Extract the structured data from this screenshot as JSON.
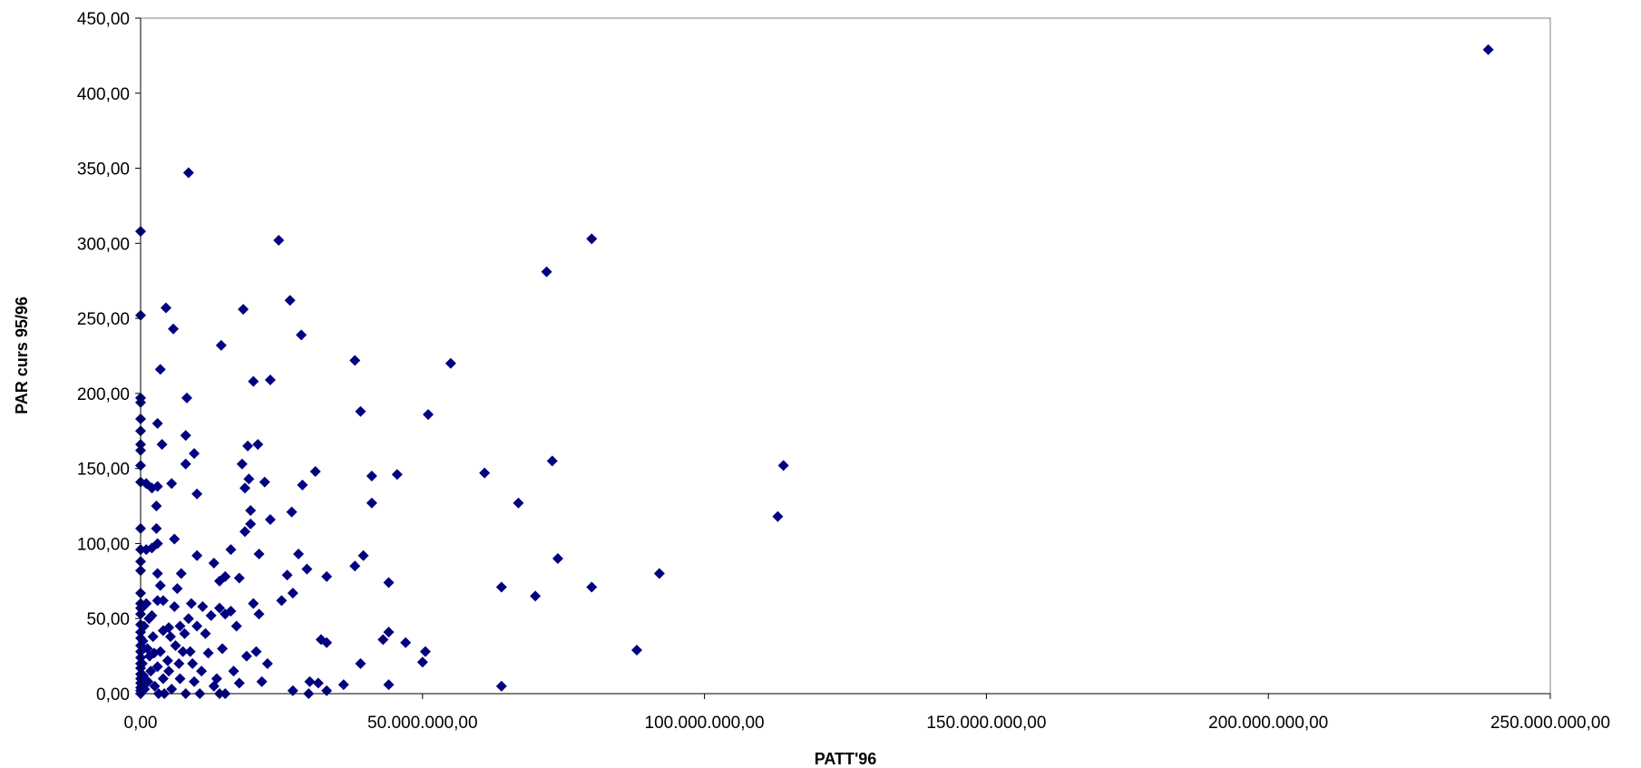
{
  "chart_data": {
    "type": "scatter",
    "title": "",
    "xlabel": "PATT'96",
    "ylabel": "PAR curs 95/96",
    "xlim": [
      0,
      250000000
    ],
    "ylim": [
      0,
      450
    ],
    "grid": false,
    "marker": "diamond",
    "marker_color": "#000080",
    "x_ticks": [
      {
        "value": 0,
        "label": "0,00"
      },
      {
        "value": 50000000,
        "label": "50.000.000,00"
      },
      {
        "value": 100000000,
        "label": "100.000.000,00"
      },
      {
        "value": 150000000,
        "label": "150.000.000,00"
      },
      {
        "value": 200000000,
        "label": "200.000.000,00"
      },
      {
        "value": 250000000,
        "label": "250.000.000,00"
      }
    ],
    "y_ticks": [
      {
        "value": 0,
        "label": "0,00"
      },
      {
        "value": 50,
        "label": "50,00"
      },
      {
        "value": 100,
        "label": "100,00"
      },
      {
        "value": 150,
        "label": "150,00"
      },
      {
        "value": 200,
        "label": "200,00"
      },
      {
        "value": 250,
        "label": "250,00"
      },
      {
        "value": 300,
        "label": "300,00"
      },
      {
        "value": 350,
        "label": "350,00"
      },
      {
        "value": 400,
        "label": "400,00"
      },
      {
        "value": 450,
        "label": "450,00"
      }
    ],
    "points": [
      [
        0,
        308
      ],
      [
        0,
        252
      ],
      [
        0,
        197
      ],
      [
        0,
        194
      ],
      [
        0,
        183
      ],
      [
        0,
        175
      ],
      [
        0,
        166
      ],
      [
        0,
        162
      ],
      [
        0,
        152
      ],
      [
        0,
        141
      ],
      [
        0,
        110
      ],
      [
        0,
        96
      ],
      [
        0,
        88
      ],
      [
        0,
        82
      ],
      [
        0,
        67
      ],
      [
        0,
        60
      ],
      [
        0,
        57
      ],
      [
        0,
        53
      ],
      [
        0,
        46
      ],
      [
        0,
        41
      ],
      [
        0,
        37
      ],
      [
        0,
        32
      ],
      [
        0,
        28
      ],
      [
        0,
        24
      ],
      [
        0,
        20
      ],
      [
        0,
        17
      ],
      [
        0,
        13
      ],
      [
        0,
        10
      ],
      [
        0,
        7
      ],
      [
        0,
        4
      ],
      [
        0,
        2
      ],
      [
        0,
        0
      ],
      [
        200000,
        57
      ],
      [
        300000,
        20
      ],
      [
        400000,
        35
      ],
      [
        500000,
        12
      ],
      [
        600000,
        45
      ],
      [
        700000,
        3
      ],
      [
        1000000,
        140
      ],
      [
        1000000,
        96
      ],
      [
        1000000,
        60
      ],
      [
        1200000,
        30
      ],
      [
        1300000,
        8
      ],
      [
        1500000,
        50
      ],
      [
        1600000,
        25
      ],
      [
        1800000,
        15
      ],
      [
        2000000,
        137
      ],
      [
        2000000,
        97
      ],
      [
        2000000,
        52
      ],
      [
        2200000,
        38
      ],
      [
        2400000,
        27
      ],
      [
        2500000,
        5
      ],
      [
        2800000,
        125
      ],
      [
        2800000,
        110
      ],
      [
        3000000,
        180
      ],
      [
        3000000,
        138
      ],
      [
        3000000,
        100
      ],
      [
        3000000,
        80
      ],
      [
        3000000,
        62
      ],
      [
        3000000,
        18
      ],
      [
        3200000,
        0
      ],
      [
        3500000,
        216
      ],
      [
        3500000,
        72
      ],
      [
        3500000,
        28
      ],
      [
        3800000,
        166
      ],
      [
        4000000,
        62
      ],
      [
        4000000,
        42
      ],
      [
        4000000,
        10
      ],
      [
        4200000,
        0
      ],
      [
        4500000,
        257
      ],
      [
        4800000,
        22
      ],
      [
        5000000,
        44
      ],
      [
        5000000,
        15
      ],
      [
        5300000,
        38
      ],
      [
        5500000,
        140
      ],
      [
        5500000,
        3
      ],
      [
        5800000,
        243
      ],
      [
        6000000,
        103
      ],
      [
        6000000,
        58
      ],
      [
        6200000,
        32
      ],
      [
        6500000,
        70
      ],
      [
        6800000,
        20
      ],
      [
        7000000,
        45
      ],
      [
        7000000,
        10
      ],
      [
        7200000,
        80
      ],
      [
        7500000,
        28
      ],
      [
        7800000,
        40
      ],
      [
        8000000,
        172
      ],
      [
        8000000,
        153
      ],
      [
        8000000,
        0
      ],
      [
        8200000,
        197
      ],
      [
        8500000,
        347
      ],
      [
        8500000,
        50
      ],
      [
        8800000,
        28
      ],
      [
        9000000,
        60
      ],
      [
        9200000,
        20
      ],
      [
        9500000,
        160
      ],
      [
        9500000,
        8
      ],
      [
        10000000,
        133
      ],
      [
        10000000,
        92
      ],
      [
        10000000,
        45
      ],
      [
        10500000,
        0
      ],
      [
        10800000,
        15
      ],
      [
        11000000,
        58
      ],
      [
        11500000,
        40
      ],
      [
        12000000,
        27
      ],
      [
        12500000,
        52
      ],
      [
        13000000,
        87
      ],
      [
        13000000,
        5
      ],
      [
        13500000,
        10
      ],
      [
        14000000,
        75
      ],
      [
        14000000,
        57
      ],
      [
        14000000,
        0
      ],
      [
        14300000,
        232
      ],
      [
        14500000,
        30
      ],
      [
        15000000,
        78
      ],
      [
        15000000,
        53
      ],
      [
        15000000,
        0
      ],
      [
        16000000,
        96
      ],
      [
        16000000,
        55
      ],
      [
        16500000,
        15
      ],
      [
        17000000,
        45
      ],
      [
        17500000,
        77
      ],
      [
        17500000,
        7
      ],
      [
        18000000,
        153
      ],
      [
        18200000,
        256
      ],
      [
        18500000,
        137
      ],
      [
        18500000,
        108
      ],
      [
        18800000,
        25
      ],
      [
        19000000,
        165
      ],
      [
        19200000,
        143
      ],
      [
        19500000,
        122
      ],
      [
        19500000,
        113
      ],
      [
        20000000,
        208
      ],
      [
        20000000,
        60
      ],
      [
        20500000,
        28
      ],
      [
        20800000,
        166
      ],
      [
        21000000,
        93
      ],
      [
        21000000,
        53
      ],
      [
        21500000,
        8
      ],
      [
        22000000,
        141
      ],
      [
        22500000,
        20
      ],
      [
        23000000,
        209
      ],
      [
        23000000,
        116
      ],
      [
        24500000,
        302
      ],
      [
        25000000,
        62
      ],
      [
        26000000,
        79
      ],
      [
        26500000,
        262
      ],
      [
        26800000,
        121
      ],
      [
        27000000,
        67
      ],
      [
        27000000,
        2
      ],
      [
        28000000,
        93
      ],
      [
        28500000,
        239
      ],
      [
        28700000,
        139
      ],
      [
        29500000,
        83
      ],
      [
        29800000,
        0
      ],
      [
        30000000,
        8
      ],
      [
        31000000,
        148
      ],
      [
        31500000,
        7
      ],
      [
        32000000,
        36
      ],
      [
        33000000,
        78
      ],
      [
        33000000,
        34
      ],
      [
        33000000,
        2
      ],
      [
        36000000,
        6
      ],
      [
        38000000,
        222
      ],
      [
        38000000,
        85
      ],
      [
        39000000,
        20
      ],
      [
        39000000,
        188
      ],
      [
        39500000,
        92
      ],
      [
        41000000,
        145
      ],
      [
        41000000,
        127
      ],
      [
        43000000,
        36
      ],
      [
        44000000,
        41
      ],
      [
        44000000,
        74
      ],
      [
        44000000,
        6
      ],
      [
        45500000,
        146
      ],
      [
        47000000,
        34
      ],
      [
        50000000,
        21
      ],
      [
        50500000,
        28
      ],
      [
        51000000,
        186
      ],
      [
        55000000,
        220
      ],
      [
        61000000,
        147
      ],
      [
        64000000,
        71
      ],
      [
        64000000,
        5
      ],
      [
        67000000,
        127
      ],
      [
        70000000,
        65
      ],
      [
        72000000,
        281
      ],
      [
        73000000,
        155
      ],
      [
        74000000,
        90
      ],
      [
        80000000,
        303
      ],
      [
        80000000,
        71
      ],
      [
        88000000,
        29
      ],
      [
        92000000,
        80
      ],
      [
        113000000,
        118
      ],
      [
        114000000,
        152
      ],
      [
        239000000,
        429
      ]
    ]
  }
}
